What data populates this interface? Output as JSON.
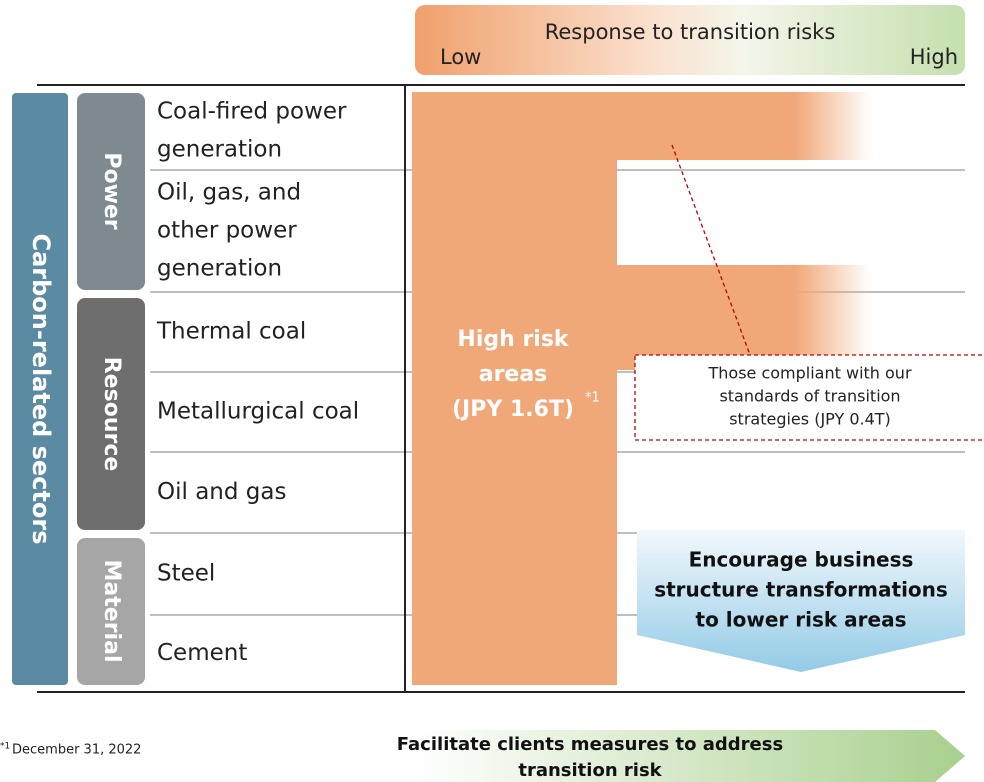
{
  "header": {
    "title": "Response to transition risks",
    "low": "Low",
    "high": "High"
  },
  "sectors_label": "Carbon-related sectors",
  "groups": [
    "Power",
    "Resource",
    "Material"
  ],
  "rows": [
    {
      "label_lines": [
        "Coal-fired power",
        "generation"
      ]
    },
    {
      "label_lines": [
        "Oil, gas, and",
        "other power",
        "generation"
      ]
    },
    {
      "label_lines": [
        "Thermal coal"
      ]
    },
    {
      "label_lines": [
        "Metallurgical coal"
      ]
    },
    {
      "label_lines": [
        "Oil and gas"
      ]
    },
    {
      "label_lines": [
        "Steel"
      ]
    },
    {
      "label_lines": [
        "Cement"
      ]
    }
  ],
  "high_risk": {
    "lines": [
      "High risk",
      "areas",
      "(JPY 1.6T)"
    ],
    "note_mark": "*1"
  },
  "callout": {
    "lines": [
      "Those compliant with our",
      "standards of transition",
      "strategies (JPY 0.4T)"
    ]
  },
  "encourage": {
    "lines": [
      "Encourage business",
      "structure transformations",
      "to lower risk areas"
    ]
  },
  "footnote": {
    "mark": "*1",
    "text": "December 31, 2022"
  },
  "facilitate": {
    "lines": [
      "Facilitate clients measures to address",
      "transition risk"
    ]
  }
}
